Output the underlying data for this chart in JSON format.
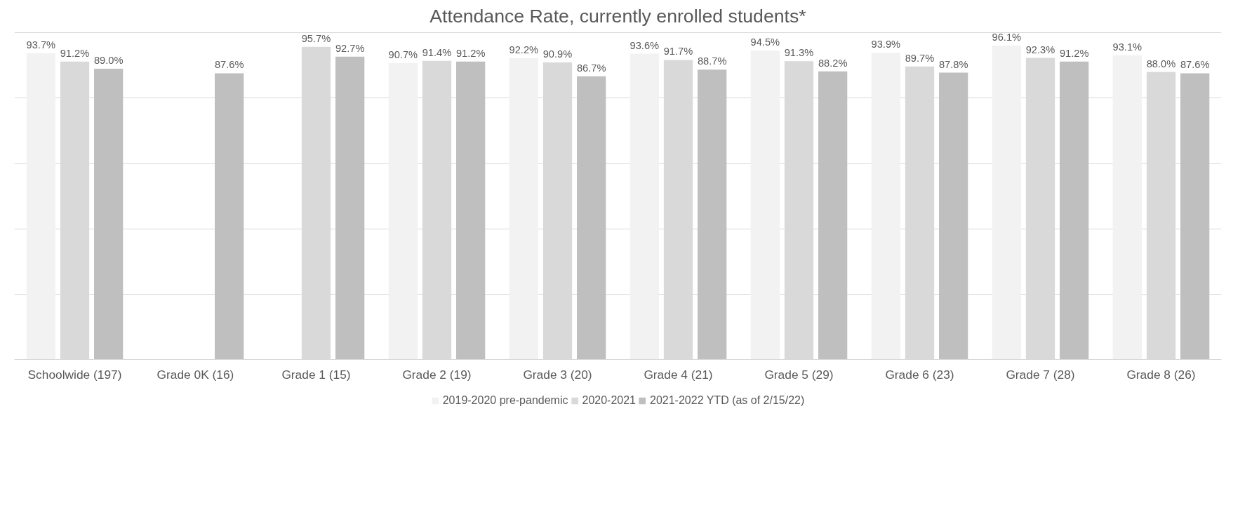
{
  "chart_data": {
    "type": "bar",
    "title": "Attendance Rate, currently enrolled students*",
    "categories": [
      "Schoolwide (197)",
      "Grade 0K (16)",
      "Grade 1 (15)",
      "Grade 2 (19)",
      "Grade 3 (20)",
      "Grade 4 (21)",
      "Grade 5 (29)",
      "Grade 6 (23)",
      "Grade 7 (28)",
      "Grade 8 (26)"
    ],
    "series": [
      {
        "name": "2019-2020 pre-pandemic",
        "color": "#f2f2f2",
        "values": [
          93.7,
          null,
          null,
          90.7,
          92.2,
          93.6,
          94.5,
          93.9,
          96.1,
          93.1
        ],
        "value_labels": [
          "93.7%",
          null,
          null,
          "90.7%",
          "92.2%",
          "93.6%",
          "94.5%",
          "93.9%",
          "96.1%",
          "93.1%"
        ]
      },
      {
        "name": "2020-2021",
        "color": "#d9d9d9",
        "values": [
          91.2,
          null,
          95.7,
          91.4,
          90.9,
          91.7,
          91.3,
          89.7,
          92.3,
          88.0
        ],
        "value_labels": [
          "91.2%",
          null,
          "95.7%",
          "91.4%",
          "90.9%",
          "91.7%",
          "91.3%",
          "89.7%",
          "92.3%",
          "88.0%"
        ]
      },
      {
        "name": "2021-2022 YTD (as of 2/15/22)",
        "color": "#bfbfbf",
        "values": [
          89.0,
          87.6,
          92.7,
          91.2,
          86.7,
          88.7,
          88.2,
          87.8,
          91.2,
          87.6
        ],
        "value_labels": [
          "89.0%",
          "87.6%",
          "92.7%",
          "91.2%",
          "86.7%",
          "88.7%",
          "88.2%",
          "87.8%",
          "91.2%",
          "87.6%"
        ]
      }
    ],
    "tick_labels": "x",
    "grid": "y",
    "legend": "bottom"
  }
}
